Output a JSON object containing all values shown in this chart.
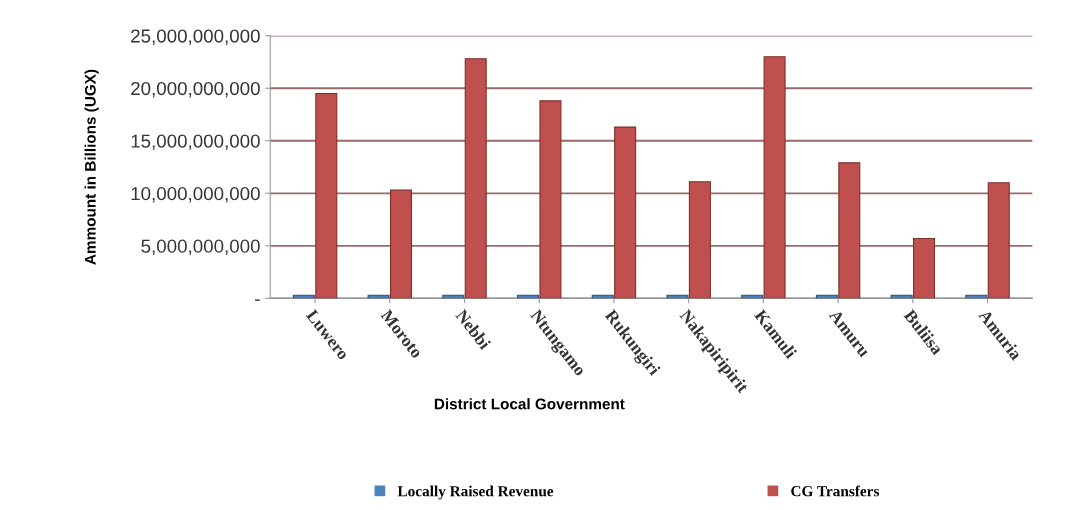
{
  "chart_data": {
    "type": "bar",
    "xlabel": "District Local Government",
    "ylabel": "Ammount in Billions (UGX)",
    "categories": [
      "Luwero",
      "Moroto",
      "Nebbi",
      "Ntungamo",
      "Rukungiri",
      "Nakapiripirit",
      "Kamuli",
      "Amuru",
      "Buliisa",
      "Amuria"
    ],
    "series": [
      {
        "name": "Locally Raised Revenue",
        "color": "#4f81bd",
        "values": [
          300000000,
          300000000,
          300000000,
          300000000,
          300000000,
          300000000,
          300000000,
          300000000,
          300000000,
          300000000
        ]
      },
      {
        "name": "CG Transfers",
        "color": "#c0504d",
        "values": [
          19500000000,
          10300000000,
          22800000000,
          18800000000,
          16300000000,
          11100000000,
          23000000000,
          12900000000,
          5700000000,
          11000000000
        ]
      }
    ],
    "ylim": [
      0,
      25000000000
    ],
    "yticks": [
      {
        "value": 0,
        "label": "-"
      },
      {
        "value": 5000000000,
        "label": "5,000,000,000"
      },
      {
        "value": 10000000000,
        "label": "10,000,000,000"
      },
      {
        "value": 15000000000,
        "label": "15,000,000,000"
      },
      {
        "value": 20000000000,
        "label": "20,000,000,000"
      },
      {
        "value": 25000000000,
        "label": "25,000,000,000"
      }
    ],
    "grid": "y",
    "legend": "bottom"
  }
}
